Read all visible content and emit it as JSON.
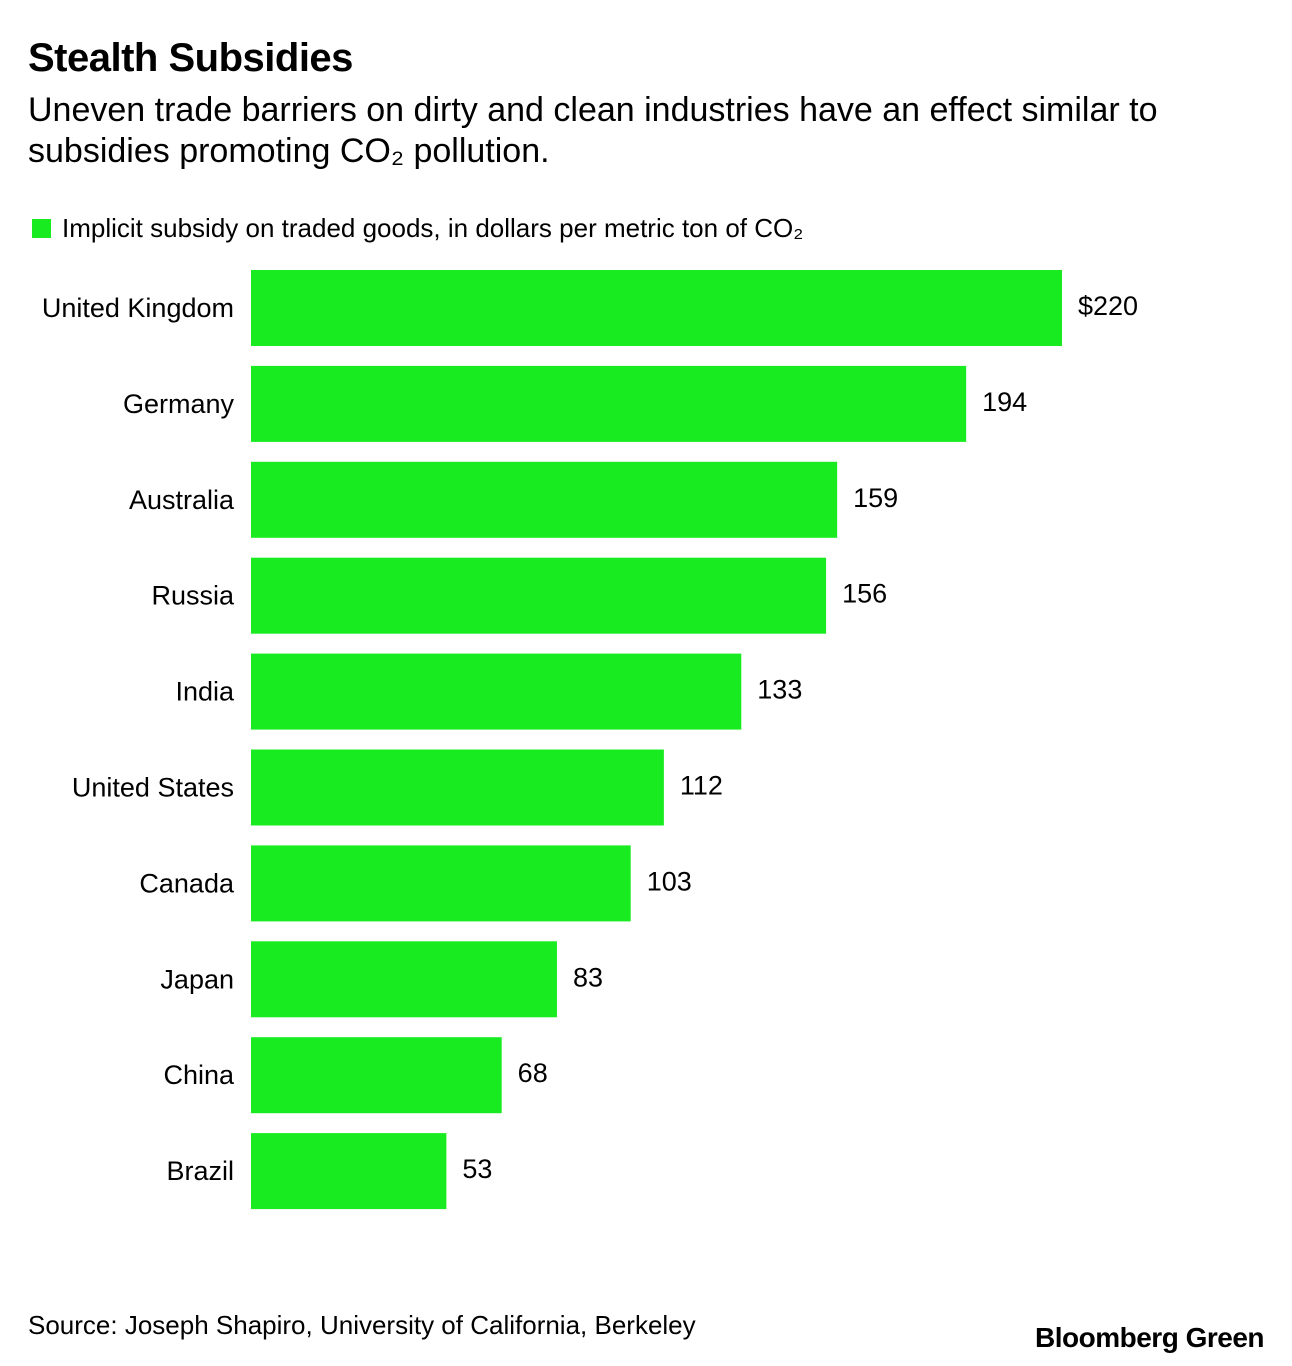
{
  "header": {
    "title": "Stealth Subsidies",
    "subtitle": "Uneven trade barriers on dirty and clean industries have an effect similar to subsidies promoting CO₂ pollution."
  },
  "legend": {
    "label": "Implicit subsidy on traded goods, in dollars per metric ton of CO₂"
  },
  "footer": {
    "source": "Source: Joseph Shapiro, University of California, Berkeley",
    "brand": "Bloomberg Green"
  },
  "colors": {
    "bar": "#18ec21",
    "text": "#000000",
    "background": "#ffffff"
  },
  "chart_data": {
    "type": "bar",
    "orientation": "horizontal",
    "title": "Stealth Subsidies",
    "subtitle": "Uneven trade barriers on dirty and clean industries have an effect similar to subsidies promoting CO₂ pollution.",
    "categories": [
      "United Kingdom",
      "Germany",
      "Australia",
      "Russia",
      "India",
      "United States",
      "Canada",
      "Japan",
      "China",
      "Brazil"
    ],
    "series": [
      {
        "name": "Implicit subsidy on traded goods, in dollars per metric ton of CO₂",
        "values": [
          220,
          194,
          159,
          156,
          133,
          112,
          103,
          83,
          68,
          53
        ]
      }
    ],
    "value_labels": [
      "$220",
      "194",
      "159",
      "156",
      "133",
      "112",
      "103",
      "83",
      "68",
      "53"
    ],
    "xlim": [
      0,
      220
    ],
    "grid": false,
    "legend_position": "top-left"
  }
}
